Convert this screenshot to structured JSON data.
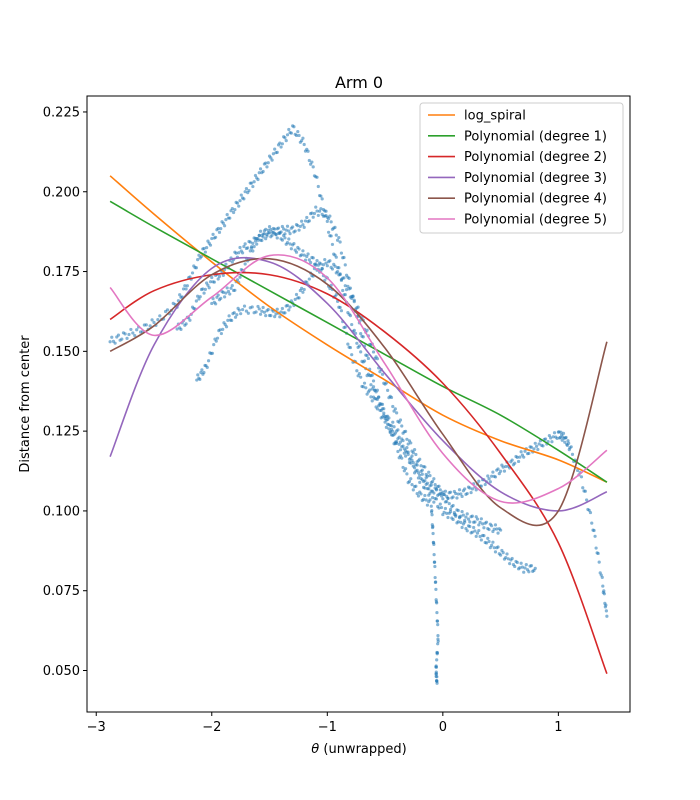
{
  "chart_data": {
    "type": "line",
    "title": "Arm 0",
    "xlabel_symbol": "θ",
    "xlabel_rest": " (unwrapped)",
    "ylabel": "Distance from center",
    "xlim": [
      -3.08,
      1.62
    ],
    "ylim": [
      0.037,
      0.23
    ],
    "xticks": [
      -3,
      -2,
      -1,
      0,
      1
    ],
    "yticks": [
      0.05,
      0.075,
      0.1,
      0.125,
      0.15,
      0.175,
      0.2,
      0.225
    ],
    "ytick_labels": [
      "0.050",
      "0.075",
      "0.100",
      "0.125",
      "0.150",
      "0.175",
      "0.200",
      "0.225"
    ],
    "grid": false,
    "legend_position": "top-right",
    "scatter": {
      "color": "#1f77b4",
      "point_tracks": [
        [
          [
            -2.88,
            0.153
          ],
          [
            -2.75,
            0.155
          ],
          [
            -2.6,
            0.157
          ],
          [
            -2.45,
            0.16
          ],
          [
            -2.3,
            0.165
          ],
          [
            -2.2,
            0.172
          ],
          [
            -2.1,
            0.18
          ],
          [
            -2.0,
            0.185
          ],
          [
            -1.9,
            0.19
          ],
          [
            -1.8,
            0.195
          ],
          [
            -1.7,
            0.2
          ],
          [
            -1.6,
            0.205
          ],
          [
            -1.5,
            0.21
          ],
          [
            -1.4,
            0.215
          ],
          [
            -1.3,
            0.22
          ],
          [
            -1.2,
            0.215
          ],
          [
            -1.1,
            0.205
          ],
          [
            -1.0,
            0.19
          ],
          [
            -0.9,
            0.175
          ],
          [
            -0.8,
            0.16
          ],
          [
            -0.7,
            0.148
          ],
          [
            -0.6,
            0.138
          ],
          [
            -0.5,
            0.13
          ],
          [
            -0.4,
            0.125
          ],
          [
            -0.3,
            0.118
          ],
          [
            -0.2,
            0.112
          ],
          [
            -0.1,
            0.107
          ],
          [
            0.0,
            0.105
          ],
          [
            0.1,
            0.105
          ],
          [
            0.2,
            0.106
          ],
          [
            0.3,
            0.108
          ],
          [
            0.4,
            0.11
          ],
          [
            0.5,
            0.113
          ],
          [
            0.6,
            0.115
          ],
          [
            0.7,
            0.118
          ],
          [
            0.8,
            0.12
          ],
          [
            0.9,
            0.122
          ],
          [
            1.0,
            0.124
          ],
          [
            1.05,
            0.123
          ],
          [
            1.1,
            0.12
          ],
          [
            1.2,
            0.11
          ],
          [
            1.3,
            0.095
          ],
          [
            1.38,
            0.078
          ],
          [
            1.42,
            0.067
          ]
        ],
        [
          [
            -2.3,
            0.157
          ],
          [
            -2.2,
            0.16
          ],
          [
            -2.1,
            0.168
          ],
          [
            -2.0,
            0.172
          ],
          [
            -1.9,
            0.175
          ],
          [
            -1.8,
            0.18
          ],
          [
            -1.7,
            0.183
          ],
          [
            -1.6,
            0.185
          ],
          [
            -1.5,
            0.187
          ],
          [
            -1.4,
            0.188
          ],
          [
            -1.3,
            0.188
          ],
          [
            -1.2,
            0.19
          ],
          [
            -1.1,
            0.194
          ],
          [
            -1.0,
            0.193
          ],
          [
            -0.9,
            0.185
          ],
          [
            -0.8,
            0.17
          ],
          [
            -0.7,
            0.155
          ],
          [
            -0.6,
            0.14
          ],
          [
            -0.5,
            0.13
          ],
          [
            -0.4,
            0.12
          ],
          [
            -0.3,
            0.11
          ],
          [
            -0.2,
            0.105
          ],
          [
            -0.1,
            0.102
          ],
          [
            -0.08,
            0.09
          ],
          [
            -0.06,
            0.075
          ],
          [
            -0.04,
            0.06
          ],
          [
            -0.06,
            0.05
          ],
          [
            -0.05,
            0.046
          ]
        ],
        [
          [
            -2.13,
            0.141
          ],
          [
            -2.05,
            0.145
          ],
          [
            -1.95,
            0.155
          ],
          [
            -1.85,
            0.16
          ],
          [
            -1.75,
            0.163
          ],
          [
            -1.6,
            0.163
          ],
          [
            -1.5,
            0.162
          ],
          [
            -1.4,
            0.162
          ],
          [
            -1.3,
            0.165
          ],
          [
            -1.2,
            0.17
          ],
          [
            -1.1,
            0.176
          ],
          [
            -1.0,
            0.178
          ],
          [
            -0.9,
            0.175
          ],
          [
            -0.8,
            0.168
          ],
          [
            -0.7,
            0.16
          ],
          [
            -0.6,
            0.15
          ],
          [
            -0.5,
            0.14
          ],
          [
            -0.4,
            0.13
          ],
          [
            -0.3,
            0.122
          ],
          [
            -0.2,
            0.115
          ],
          [
            -0.1,
            0.11
          ],
          [
            0.0,
            0.105
          ],
          [
            0.1,
            0.1
          ],
          [
            0.2,
            0.098
          ],
          [
            0.3,
            0.097
          ],
          [
            0.4,
            0.095
          ],
          [
            0.5,
            0.094
          ]
        ],
        [
          [
            -2.0,
            0.165
          ],
          [
            -1.9,
            0.168
          ],
          [
            -1.8,
            0.17
          ],
          [
            -1.7,
            0.178
          ],
          [
            -1.6,
            0.186
          ],
          [
            -1.5,
            0.188
          ],
          [
            -1.4,
            0.186
          ],
          [
            -1.3,
            0.183
          ],
          [
            -1.2,
            0.18
          ],
          [
            -1.1,
            0.178
          ],
          [
            -1.0,
            0.172
          ],
          [
            -0.9,
            0.165
          ],
          [
            -0.8,
            0.15
          ],
          [
            -0.7,
            0.14
          ],
          [
            -0.6,
            0.135
          ],
          [
            -0.5,
            0.128
          ],
          [
            -0.4,
            0.122
          ],
          [
            -0.3,
            0.117
          ],
          [
            -0.2,
            0.11
          ],
          [
            -0.1,
            0.105
          ],
          [
            0.0,
            0.1
          ],
          [
            0.1,
            0.098
          ],
          [
            0.2,
            0.095
          ],
          [
            0.3,
            0.093
          ],
          [
            0.4,
            0.09
          ],
          [
            0.5,
            0.087
          ],
          [
            0.6,
            0.084
          ],
          [
            0.7,
            0.082
          ],
          [
            0.8,
            0.082
          ]
        ]
      ]
    },
    "series": [
      {
        "name": "log_spiral",
        "color": "#ff7f0e",
        "x": [
          -2.88,
          -2.5,
          -2.0,
          -1.5,
          -1.0,
          -0.5,
          0.0,
          0.5,
          1.0,
          1.42
        ],
        "y": [
          0.205,
          0.193,
          0.178,
          0.164,
          0.152,
          0.141,
          0.13,
          0.122,
          0.116,
          0.109
        ]
      },
      {
        "name": "Polynomial (degree 1)",
        "color": "#2ca02c",
        "x": [
          -2.88,
          -2.5,
          -2.0,
          -1.5,
          -1.0,
          -0.5,
          0.0,
          0.5,
          1.0,
          1.42
        ],
        "y": [
          0.197,
          0.189,
          0.179,
          0.169,
          0.159,
          0.149,
          0.139,
          0.13,
          0.119,
          0.109
        ]
      },
      {
        "name": "Polynomial (degree 2)",
        "color": "#d62728",
        "x": [
          -2.88,
          -2.5,
          -2.0,
          -1.5,
          -1.0,
          -0.5,
          0.0,
          0.5,
          1.0,
          1.42
        ],
        "y": [
          0.16,
          0.169,
          0.174,
          0.174,
          0.168,
          0.156,
          0.14,
          0.118,
          0.09,
          0.049
        ]
      },
      {
        "name": "Polynomial (degree 3)",
        "color": "#9467bd",
        "x": [
          -2.88,
          -2.5,
          -2.0,
          -1.5,
          -1.0,
          -0.5,
          0.0,
          0.5,
          1.0,
          1.42
        ],
        "y": [
          0.117,
          0.152,
          0.176,
          0.178,
          0.165,
          0.143,
          0.122,
          0.106,
          0.1,
          0.106
        ]
      },
      {
        "name": "Polynomial (degree 4)",
        "color": "#8c564b",
        "x": [
          -2.88,
          -2.5,
          -2.0,
          -1.5,
          -1.0,
          -0.5,
          0.0,
          0.5,
          1.0,
          1.42
        ],
        "y": [
          0.15,
          0.158,
          0.174,
          0.179,
          0.171,
          0.151,
          0.124,
          0.101,
          0.1,
          0.153
        ]
      },
      {
        "name": "Polynomial (degree 5)",
        "color": "#e377c2",
        "x": [
          -2.88,
          -2.5,
          -2.0,
          -1.5,
          -1.0,
          -0.5,
          0.0,
          0.5,
          1.0,
          1.42
        ],
        "y": [
          0.17,
          0.155,
          0.167,
          0.18,
          0.173,
          0.146,
          0.118,
          0.103,
          0.107,
          0.119
        ]
      }
    ]
  }
}
